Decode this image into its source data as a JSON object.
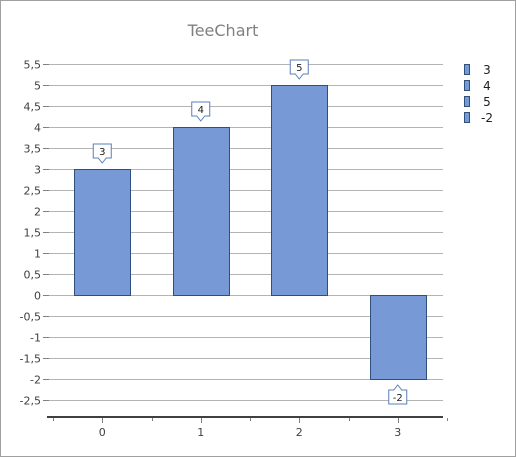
{
  "chart_data": {
    "type": "bar",
    "title": "TeeChart",
    "categories": [
      "0",
      "1",
      "2",
      "3"
    ],
    "values": [
      3,
      4,
      5,
      -2
    ],
    "ylim": [
      -2.9,
      5.9
    ],
    "yticks": [
      "5,5",
      "5",
      "4,5",
      "4",
      "3,5",
      "3",
      "2,5",
      "2",
      "1,5",
      "1",
      "0,5",
      "0",
      "-0,5",
      "-1",
      "-1,5",
      "-2",
      "-2,5"
    ],
    "ytick_values": [
      5.5,
      5,
      4.5,
      4,
      3.5,
      3,
      2.5,
      2,
      1.5,
      1,
      0.5,
      0,
      -0.5,
      -1,
      -1.5,
      -2,
      -2.5
    ],
    "legend": [
      "3",
      "4",
      "5",
      "-2"
    ],
    "data_labels": [
      "3",
      "4",
      "5",
      "-2"
    ],
    "legend_position": "top-right",
    "grid": true,
    "bar_color": "#7799d6",
    "bar_border_color": "#2f4f7f"
  }
}
